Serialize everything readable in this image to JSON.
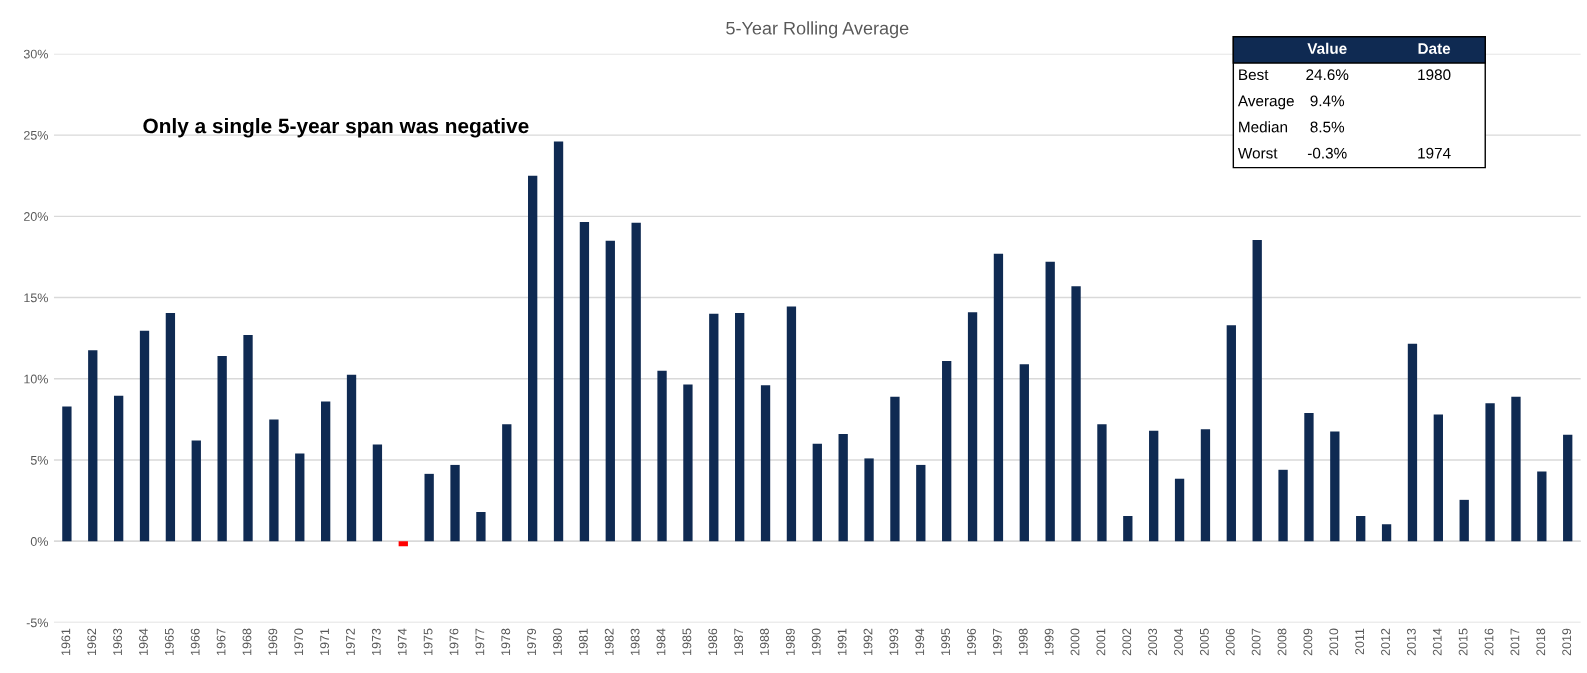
{
  "chart_data": {
    "type": "bar",
    "title": "5-Year Rolling Average",
    "categories": [
      "1961",
      "1962",
      "1963",
      "1964",
      "1965",
      "1966",
      "1967",
      "1968",
      "1969",
      "1970",
      "1971",
      "1972",
      "1973",
      "1974",
      "1975",
      "1976",
      "1977",
      "1978",
      "1979",
      "1980",
      "1981",
      "1982",
      "1983",
      "1984",
      "1985",
      "1986",
      "1987",
      "1988",
      "1989",
      "1990",
      "1991",
      "1992",
      "1993",
      "1994",
      "1995",
      "1996",
      "1997",
      "1998",
      "1999",
      "2000",
      "2001",
      "2002",
      "2003",
      "2004",
      "2005",
      "2006",
      "2007",
      "2008",
      "2009",
      "2010",
      "2011",
      "2012",
      "2013",
      "2014",
      "2015",
      "2016",
      "2017",
      "2018",
      "2019"
    ],
    "values": [
      8.3,
      11.75,
      8.95,
      12.95,
      14.05,
      6.2,
      11.4,
      12.7,
      7.5,
      5.4,
      8.6,
      10.25,
      5.95,
      -0.3,
      4.15,
      4.7,
      1.8,
      7.2,
      22.5,
      24.6,
      19.65,
      18.5,
      19.6,
      10.5,
      9.65,
      14.0,
      14.05,
      9.6,
      14.45,
      6.0,
      6.6,
      5.1,
      8.9,
      4.7,
      11.1,
      14.1,
      17.7,
      10.9,
      17.2,
      15.7,
      7.2,
      1.55,
      6.8,
      3.85,
      6.9,
      13.3,
      18.55,
      4.4,
      7.9,
      6.75,
      1.55,
      1.05,
      12.15,
      7.8,
      2.55,
      8.5,
      8.9,
      4.3,
      6.55
    ],
    "colors": [
      "#0f2a52",
      "#0f2a52",
      "#0f2a52",
      "#0f2a52",
      "#0f2a52",
      "#0f2a52",
      "#0f2a52",
      "#0f2a52",
      "#0f2a52",
      "#0f2a52",
      "#0f2a52",
      "#0f2a52",
      "#0f2a52",
      "#ff0000",
      "#0f2a52",
      "#0f2a52",
      "#0f2a52",
      "#0f2a52",
      "#0f2a52",
      "#0f2a52",
      "#0f2a52",
      "#0f2a52",
      "#0f2a52",
      "#0f2a52",
      "#0f2a52",
      "#0f2a52",
      "#0f2a52",
      "#0f2a52",
      "#0f2a52",
      "#0f2a52",
      "#0f2a52",
      "#0f2a52",
      "#0f2a52",
      "#0f2a52",
      "#0f2a52",
      "#0f2a52",
      "#0f2a52",
      "#0f2a52",
      "#0f2a52",
      "#0f2a52",
      "#0f2a52",
      "#0f2a52",
      "#0f2a52",
      "#0f2a52",
      "#0f2a52",
      "#0f2a52",
      "#0f2a52",
      "#0f2a52",
      "#0f2a52",
      "#0f2a52",
      "#0f2a52",
      "#0f2a52",
      "#0f2a52",
      "#0f2a52",
      "#0f2a52",
      "#0f2a52",
      "#0f2a52",
      "#0f2a52",
      "#0f2a52"
    ],
    "ylim": [
      -5,
      30
    ],
    "yticks": [
      {
        "value": -5,
        "label": "-5%"
      },
      {
        "value": 0,
        "label": "0%"
      },
      {
        "value": 5,
        "label": "5%"
      },
      {
        "value": 10,
        "label": "10%"
      },
      {
        "value": 15,
        "label": "15%"
      },
      {
        "value": 20,
        "label": "20%"
      },
      {
        "value": 25,
        "label": "25%"
      },
      {
        "value": 30,
        "label": "30%"
      }
    ],
    "grid": "y",
    "annotations": [
      "Only a single 5-year span was negative",
      "Value",
      "Date",
      "Best",
      "24.6%",
      "1980",
      "Average",
      "9.4%",
      "Median",
      "8.5%",
      "Worst",
      "-0.3%",
      "1974"
    ]
  }
}
